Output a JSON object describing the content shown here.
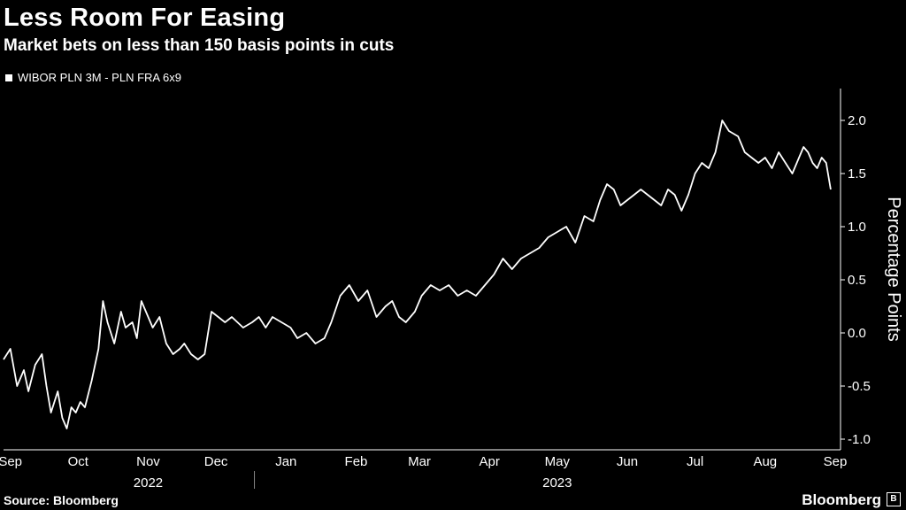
{
  "header": {
    "title": "Less Room For Easing",
    "subtitle": "Market bets on less than 150 basis points in cuts"
  },
  "legend": {
    "label": "WIBOR PLN 3M - PLN FRA 6x9",
    "color": "#ffffff"
  },
  "footer": {
    "source": "Source: Bloomberg",
    "brand": "Bloomberg"
  },
  "icons": {
    "brand_mark": "bloomberg-b-icon"
  },
  "colors": {
    "background": "#000000",
    "line": "#ffffff",
    "axis": "#ffffff"
  },
  "chart_data": {
    "type": "line",
    "title": "Less Room For Easing",
    "subtitle": "Market bets on less than 150 basis points in cuts",
    "ylabel": "Percentage Points",
    "xlabel": "",
    "ylim": [
      -1.1,
      2.3
    ],
    "yticks": [
      2.0,
      1.5,
      1.0,
      0.5,
      0.0,
      -0.5,
      -1.0
    ],
    "ytick_labels": [
      "2.0",
      "1.5",
      "1.0",
      "0.5",
      "0.0",
      "-0.5",
      "-1.0"
    ],
    "xlim": [
      "2022-09-12",
      "2023-09-15"
    ],
    "month_ticks": [
      {
        "label": "Sep",
        "date": "2022-09-15"
      },
      {
        "label": "Oct",
        "date": "2022-10-15"
      },
      {
        "label": "Nov",
        "date": "2022-11-15"
      },
      {
        "label": "Dec",
        "date": "2022-12-15"
      },
      {
        "label": "Jan",
        "date": "2023-01-15"
      },
      {
        "label": "Feb",
        "date": "2023-02-15"
      },
      {
        "label": "Mar",
        "date": "2023-03-15"
      },
      {
        "label": "Apr",
        "date": "2023-04-15"
      },
      {
        "label": "May",
        "date": "2023-05-15"
      },
      {
        "label": "Jun",
        "date": "2023-06-15"
      },
      {
        "label": "Jul",
        "date": "2023-07-15"
      },
      {
        "label": "Aug",
        "date": "2023-08-15"
      },
      {
        "label": "Sep",
        "date": "2023-09-15"
      }
    ],
    "year_labels": [
      {
        "label": "2022",
        "date": "2022-11-15"
      },
      {
        "label": "2023",
        "date": "2023-05-15"
      }
    ],
    "year_divider": "2023-01-01",
    "grid": false,
    "legend_position": "top-left",
    "series": [
      {
        "name": "WIBOR PLN 3M - PLN FRA 6x9",
        "color": "#ffffff",
        "x": [
          "2022-09-12",
          "2022-09-15",
          "2022-09-18",
          "2022-09-21",
          "2022-09-23",
          "2022-09-26",
          "2022-09-29",
          "2022-10-01",
          "2022-10-03",
          "2022-10-06",
          "2022-10-08",
          "2022-10-10",
          "2022-10-12",
          "2022-10-14",
          "2022-10-16",
          "2022-10-18",
          "2022-10-21",
          "2022-10-24",
          "2022-10-26",
          "2022-10-28",
          "2022-10-31",
          "2022-11-03",
          "2022-11-05",
          "2022-11-08",
          "2022-11-10",
          "2022-11-12",
          "2022-11-15",
          "2022-11-17",
          "2022-11-20",
          "2022-11-23",
          "2022-11-26",
          "2022-11-29",
          "2022-12-01",
          "2022-12-04",
          "2022-12-07",
          "2022-12-10",
          "2022-12-13",
          "2022-12-16",
          "2022-12-19",
          "2022-12-22",
          "2022-12-27",
          "2022-12-31",
          "2023-01-03",
          "2023-01-06",
          "2023-01-09",
          "2023-01-13",
          "2023-01-17",
          "2023-01-20",
          "2023-01-24",
          "2023-01-28",
          "2023-02-01",
          "2023-02-04",
          "2023-02-08",
          "2023-02-12",
          "2023-02-16",
          "2023-02-20",
          "2023-02-24",
          "2023-02-28",
          "2023-03-03",
          "2023-03-06",
          "2023-03-09",
          "2023-03-13",
          "2023-03-16",
          "2023-03-20",
          "2023-03-24",
          "2023-03-28",
          "2023-04-01",
          "2023-04-05",
          "2023-04-09",
          "2023-04-13",
          "2023-04-17",
          "2023-04-21",
          "2023-04-25",
          "2023-04-29",
          "2023-05-03",
          "2023-05-07",
          "2023-05-11",
          "2023-05-15",
          "2023-05-19",
          "2023-05-23",
          "2023-05-27",
          "2023-05-31",
          "2023-06-03",
          "2023-06-06",
          "2023-06-09",
          "2023-06-12",
          "2023-06-15",
          "2023-06-18",
          "2023-06-21",
          "2023-06-24",
          "2023-06-27",
          "2023-06-30",
          "2023-07-03",
          "2023-07-06",
          "2023-07-09",
          "2023-07-12",
          "2023-07-15",
          "2023-07-18",
          "2023-07-21",
          "2023-07-24",
          "2023-07-27",
          "2023-07-30",
          "2023-08-03",
          "2023-08-06",
          "2023-08-09",
          "2023-08-12",
          "2023-08-15",
          "2023-08-18",
          "2023-08-21",
          "2023-08-24",
          "2023-08-27",
          "2023-08-30",
          "2023-09-01",
          "2023-09-03",
          "2023-09-05",
          "2023-09-07",
          "2023-09-09",
          "2023-09-11",
          "2023-09-13"
        ],
        "values": [
          -0.25,
          -0.15,
          -0.5,
          -0.35,
          -0.55,
          -0.3,
          -0.2,
          -0.5,
          -0.75,
          -0.55,
          -0.8,
          -0.9,
          -0.7,
          -0.75,
          -0.65,
          -0.7,
          -0.45,
          -0.15,
          0.3,
          0.1,
          -0.1,
          0.2,
          0.05,
          0.1,
          -0.05,
          0.3,
          0.15,
          0.05,
          0.15,
          -0.1,
          -0.2,
          -0.15,
          -0.1,
          -0.2,
          -0.25,
          -0.2,
          0.2,
          0.15,
          0.1,
          0.15,
          0.05,
          0.1,
          0.15,
          0.05,
          0.15,
          0.1,
          0.05,
          -0.05,
          0.0,
          -0.1,
          -0.05,
          0.1,
          0.35,
          0.45,
          0.3,
          0.4,
          0.15,
          0.25,
          0.3,
          0.15,
          0.1,
          0.2,
          0.35,
          0.45,
          0.4,
          0.45,
          0.35,
          0.4,
          0.35,
          0.45,
          0.55,
          0.7,
          0.6,
          0.7,
          0.75,
          0.8,
          0.9,
          0.95,
          1.0,
          0.85,
          1.1,
          1.05,
          1.25,
          1.4,
          1.35,
          1.2,
          1.25,
          1.3,
          1.35,
          1.3,
          1.25,
          1.2,
          1.35,
          1.3,
          1.15,
          1.3,
          1.5,
          1.6,
          1.55,
          1.7,
          2.0,
          1.9,
          1.85,
          1.7,
          1.65,
          1.6,
          1.65,
          1.55,
          1.7,
          1.6,
          1.5,
          1.65,
          1.75,
          1.7,
          1.6,
          1.55,
          1.65,
          1.6,
          1.35
        ]
      }
    ]
  }
}
